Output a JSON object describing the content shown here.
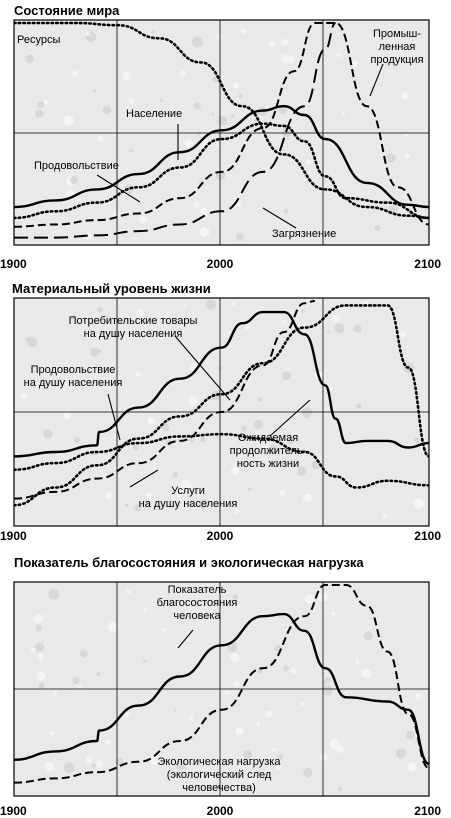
{
  "chart_data": [
    {
      "type": "line",
      "title": "Состояние мира",
      "x_ticks": [
        "1900",
        "2000",
        "2100"
      ],
      "xlim": [
        1900,
        2100
      ],
      "ylim": [
        0,
        1
      ],
      "grid": true,
      "series": [
        {
          "name": "Ресурсы",
          "style": "dotted",
          "x": [
            1900,
            1930,
            1950,
            1970,
            1990,
            2010,
            2030,
            2050,
            2070,
            2090,
            2100
          ],
          "y": [
            1.0,
            1.0,
            0.99,
            0.93,
            0.82,
            0.62,
            0.4,
            0.24,
            0.16,
            0.12,
            0.11
          ]
        },
        {
          "name": "Население",
          "style": "solid",
          "x": [
            1900,
            1920,
            1940,
            1960,
            1980,
            2000,
            2020,
            2030,
            2040,
            2050,
            2070,
            2090,
            2100
          ],
          "y": [
            0.16,
            0.19,
            0.24,
            0.31,
            0.41,
            0.51,
            0.6,
            0.62,
            0.58,
            0.47,
            0.27,
            0.17,
            0.16
          ]
        },
        {
          "name": "Продовольствие",
          "style": "dotted",
          "x": [
            1900,
            1920,
            1940,
            1960,
            1980,
            2000,
            2020,
            2030,
            2040,
            2050,
            2060,
            2080,
            2100
          ],
          "y": [
            0.11,
            0.14,
            0.18,
            0.25,
            0.34,
            0.47,
            0.54,
            0.53,
            0.46,
            0.3,
            0.2,
            0.18,
            0.11
          ]
        },
        {
          "name": "Промышленная продукция",
          "style": "dashed",
          "x": [
            1900,
            1920,
            1940,
            1960,
            1980,
            2000,
            2020,
            2035,
            2045,
            2055,
            2070,
            2085,
            2100
          ],
          "y": [
            0.07,
            0.08,
            0.1,
            0.13,
            0.2,
            0.32,
            0.52,
            0.78,
            1.0,
            1.0,
            0.62,
            0.25,
            0.08
          ]
        },
        {
          "name": "Загрязнение",
          "style": "long-dashed",
          "x": [
            1900,
            1920,
            1940,
            1960,
            1980,
            2000,
            2020,
            2040,
            2050,
            2055
          ],
          "y": [
            0.02,
            0.02,
            0.03,
            0.05,
            0.08,
            0.14,
            0.32,
            0.62,
            0.88,
            1.0
          ]
        }
      ]
    },
    {
      "type": "line",
      "title": "Материальный уровень жизни",
      "x_ticks": [
        "1900",
        "2000",
        "2100"
      ],
      "xlim": [
        1900,
        2100
      ],
      "ylim": [
        0,
        1
      ],
      "grid": true,
      "series": [
        {
          "name": "Потребительские товары на душу населения",
          "style": "solid",
          "x": [
            1900,
            1920,
            1940,
            1941,
            1960,
            1980,
            2000,
            2010,
            2020,
            2030,
            2040,
            2050,
            2055,
            2060,
            2070,
            2080,
            2090,
            2100
          ],
          "y": [
            0.3,
            0.32,
            0.35,
            0.41,
            0.52,
            0.65,
            0.79,
            0.9,
            0.95,
            0.95,
            0.85,
            0.62,
            0.47,
            0.36,
            0.37,
            0.37,
            0.34,
            0.36
          ]
        },
        {
          "name": "Продовольствие на душу населения",
          "style": "dotted",
          "x": [
            1900,
            1920,
            1940,
            1960,
            1980,
            2000,
            2020,
            2040,
            2055,
            2065,
            2080,
            2100
          ],
          "y": [
            0.24,
            0.27,
            0.32,
            0.36,
            0.39,
            0.4,
            0.38,
            0.32,
            0.21,
            0.16,
            0.19,
            0.17
          ]
        },
        {
          "name": "Услуги на душу населения",
          "style": "dashed",
          "x": [
            1900,
            1920,
            1940,
            1960,
            1980,
            2000,
            2020,
            2030,
            2040,
            2045
          ],
          "y": [
            0.11,
            0.14,
            0.2,
            0.27,
            0.37,
            0.5,
            0.71,
            0.86,
            0.99,
            1.0
          ]
        },
        {
          "name": "Ожидаемая продолжительность жизни",
          "style": "dotted",
          "x": [
            1900,
            1920,
            1940,
            1960,
            1980,
            2000,
            2020,
            2040,
            2060,
            2080,
            2090,
            2100
          ],
          "y": [
            0.08,
            0.16,
            0.26,
            0.38,
            0.48,
            0.58,
            0.72,
            0.88,
            0.98,
            0.98,
            0.7,
            0.3
          ]
        }
      ]
    },
    {
      "type": "line",
      "title": "Показатель благосостояния и экологическая нагрузка",
      "x_ticks": [
        "1900",
        "2000",
        "2100"
      ],
      "xlim": [
        1900,
        2100
      ],
      "ylim": [
        0,
        1
      ],
      "grid": true,
      "series": [
        {
          "name": "Показатель благосостояния человека",
          "style": "solid",
          "x": [
            1900,
            1920,
            1940,
            1941,
            1960,
            1980,
            2000,
            2020,
            2030,
            2040,
            2050,
            2060,
            2080,
            2090,
            2100
          ],
          "y": [
            0.16,
            0.2,
            0.25,
            0.3,
            0.42,
            0.56,
            0.71,
            0.85,
            0.86,
            0.78,
            0.6,
            0.46,
            0.44,
            0.4,
            0.14
          ]
        },
        {
          "name": "Экологическая нагрузка (экологический след человечества)",
          "style": "dashed",
          "x": [
            1900,
            1920,
            1940,
            1960,
            1980,
            2000,
            2020,
            2040,
            2050,
            2060,
            2070,
            2080,
            2090,
            2100
          ],
          "y": [
            0.05,
            0.07,
            0.1,
            0.15,
            0.25,
            0.4,
            0.6,
            0.85,
            1.0,
            1.0,
            0.9,
            0.68,
            0.38,
            0.12
          ]
        }
      ]
    }
  ],
  "annotations": [
    [
      "Ресурсы"
    ],
    [
      "Промыш-",
      "ленная",
      "продукция"
    ],
    [
      "Население"
    ],
    [
      "Продовольствие"
    ],
    [
      "Загрязнение"
    ],
    [
      "Потребительские товары",
      "на душу населения"
    ],
    [
      "Продовольствие",
      "на душу населения"
    ],
    [
      "Ожидаемая",
      "продолжитель-",
      "ность жизни"
    ],
    [
      "Услуги",
      "на душу населения"
    ],
    [
      "Показатель",
      "благосостояния",
      "человека"
    ],
    [
      "Экологическая нагрузка",
      "(экологический след",
      "человечества)"
    ]
  ]
}
